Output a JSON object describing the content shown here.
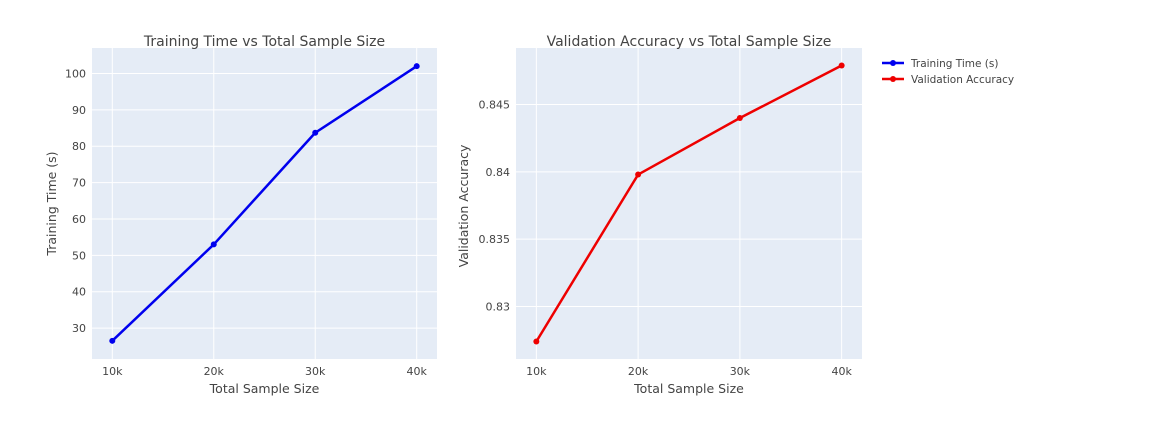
{
  "chart_data": [
    {
      "type": "line",
      "title": "Training Time vs Total Sample Size",
      "xlabel": "Total Sample Size",
      "ylabel": "Training Time (s)",
      "categories": [
        "10k",
        "20k",
        "30k",
        "40k"
      ],
      "x": [
        10000,
        20000,
        30000,
        40000
      ],
      "series": [
        {
          "name": "Training Time (s)",
          "color": "#0000ee",
          "values": [
            26.5,
            53.0,
            83.7,
            102.0
          ]
        }
      ],
      "yticks": [
        30,
        40,
        50,
        60,
        70,
        80,
        90,
        100
      ],
      "ytick_labels": [
        "30",
        "40",
        "50",
        "60",
        "70",
        "80",
        "90",
        "100"
      ],
      "ylim": [
        21.5,
        107.0
      ],
      "xlim": [
        8000,
        42000
      ],
      "grid": true
    },
    {
      "type": "line",
      "title": "Validation Accuracy vs Total Sample Size",
      "xlabel": "Total Sample Size",
      "ylabel": "Validation Accuracy",
      "categories": [
        "10k",
        "20k",
        "30k",
        "40k"
      ],
      "x": [
        10000,
        20000,
        30000,
        40000
      ],
      "series": [
        {
          "name": "Validation Accuracy",
          "color": "#ee0000",
          "values": [
            0.8274,
            0.8398,
            0.844,
            0.8479
          ]
        }
      ],
      "yticks": [
        0.83,
        0.835,
        0.84,
        0.845
      ],
      "ytick_labels": [
        "0.83",
        "0.835",
        "0.84",
        "0.845"
      ],
      "ylim": [
        0.8261,
        0.8492
      ],
      "xlim": [
        8000,
        42000
      ],
      "grid": true
    }
  ],
  "legend": {
    "position": "top-right",
    "items": [
      {
        "label": "Training Time (s)",
        "color": "#0000ee"
      },
      {
        "label": "Validation Accuracy",
        "color": "#ee0000"
      }
    ]
  },
  "colors": {
    "plot_bg": "#e5ecf6",
    "grid": "#ffffff",
    "text": "#444444"
  }
}
